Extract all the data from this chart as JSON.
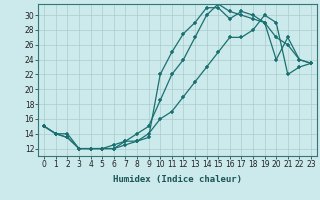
{
  "xlabel": "Humidex (Indice chaleur)",
  "background_color": "#cce9ec",
  "grid_color": "#aacccc",
  "line_color": "#1a7070",
  "xlim": [
    -0.5,
    23.5
  ],
  "ylim": [
    11,
    31.5
  ],
  "yticks": [
    12,
    14,
    16,
    18,
    20,
    22,
    24,
    26,
    28,
    30
  ],
  "xticks": [
    0,
    1,
    2,
    3,
    4,
    5,
    6,
    7,
    8,
    9,
    10,
    11,
    12,
    13,
    14,
    15,
    16,
    17,
    18,
    19,
    20,
    21,
    22,
    23
  ],
  "series1_x": [
    0,
    1,
    2,
    3,
    4,
    5,
    6,
    7,
    8,
    9,
    10,
    11,
    12,
    13,
    14,
    15,
    16,
    17,
    18,
    19,
    20,
    21,
    22,
    23
  ],
  "series1_y": [
    15,
    14,
    13.5,
    12,
    12,
    12,
    12,
    12.5,
    13,
    13.5,
    22,
    25,
    27.5,
    29,
    31,
    31,
    29.5,
    30.5,
    30,
    29,
    24,
    27,
    24,
    23.5
  ],
  "series2_x": [
    0,
    1,
    2,
    3,
    4,
    5,
    6,
    7,
    8,
    9,
    10,
    11,
    12,
    13,
    14,
    15,
    16,
    17,
    18,
    19,
    20,
    21,
    22,
    23
  ],
  "series2_y": [
    15,
    14,
    14,
    12,
    12,
    12,
    12.5,
    13,
    14,
    15,
    18.5,
    22,
    24,
    27,
    30,
    31.5,
    30.5,
    30,
    29.5,
    29,
    27,
    26,
    24,
    23.5
  ],
  "series3_x": [
    0,
    1,
    2,
    3,
    4,
    5,
    6,
    7,
    8,
    9,
    10,
    11,
    12,
    13,
    14,
    15,
    16,
    17,
    18,
    19,
    20,
    21,
    22,
    23
  ],
  "series3_y": [
    15,
    14,
    13.5,
    12,
    12,
    12,
    12,
    13,
    13,
    14,
    16,
    17,
    19,
    21,
    23,
    25,
    27,
    27,
    28,
    30,
    29,
    22,
    23,
    23.5
  ],
  "tick_fontsize": 5.5,
  "xlabel_fontsize": 6.5
}
